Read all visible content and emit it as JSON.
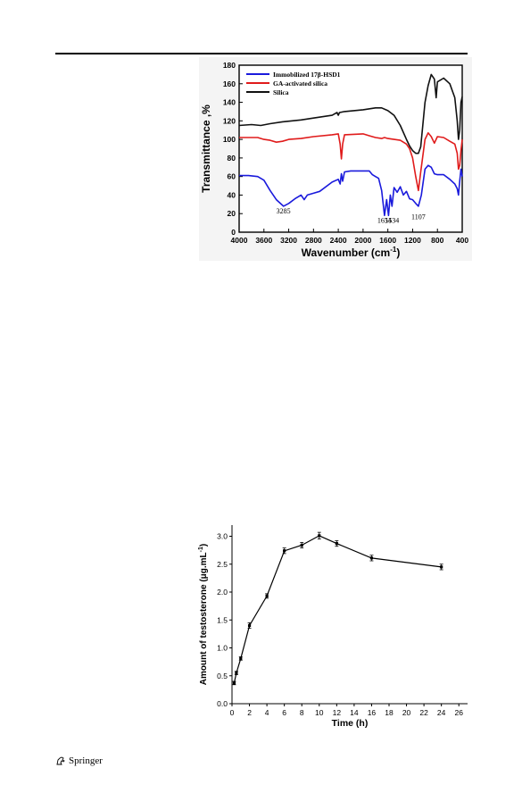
{
  "chart_data": [
    {
      "type": "line",
      "ylabel": "Transmittance ,%",
      "xlabel_main": "Wavenumber (cm",
      "xlabel_sup": "-1",
      "xlabel_close": ")",
      "xlim": [
        4000,
        400
      ],
      "ylim": [
        0,
        180
      ],
      "x_ticks": [
        4000,
        3600,
        3200,
        2800,
        2400,
        2000,
        1600,
        1200,
        800,
        400
      ],
      "y_ticks": [
        0,
        20,
        40,
        60,
        80,
        100,
        120,
        140,
        160,
        180
      ],
      "legend_position": "top-left",
      "series": [
        {
          "name": "Immobilized 17β-HSD1",
          "color": "#1a1adc",
          "x": [
            4000,
            3850,
            3700,
            3600,
            3500,
            3400,
            3285,
            3200,
            3100,
            3000,
            2950,
            2900,
            2800,
            2700,
            2500,
            2400,
            2370,
            2350,
            2330,
            2300,
            2200,
            2000,
            1900,
            1850,
            1800,
            1750,
            1700,
            1654,
            1620,
            1590,
            1560,
            1534,
            1500,
            1450,
            1400,
            1350,
            1300,
            1250,
            1200,
            1150,
            1107,
            1060,
            1000,
            950,
            900,
            850,
            800,
            700,
            600,
            520,
            480,
            460,
            440,
            420,
            400
          ],
          "y": [
            61,
            61,
            60,
            56,
            45,
            35,
            28,
            31,
            36,
            40,
            35,
            40,
            42,
            44,
            54,
            57,
            52,
            63,
            55,
            65,
            66,
            66,
            66,
            62,
            60,
            58,
            45,
            18,
            35,
            18,
            40,
            28,
            48,
            43,
            49,
            40,
            44,
            36,
            35,
            31,
            28,
            40,
            68,
            72,
            70,
            63,
            62,
            62,
            57,
            52,
            47,
            40,
            55,
            68,
            60
          ]
        },
        {
          "name": "GA-activated silica",
          "color": "#e01b1b",
          "x": [
            4000,
            3700,
            3600,
            3500,
            3400,
            3300,
            3200,
            3000,
            2800,
            2500,
            2400,
            2370,
            2350,
            2330,
            2300,
            2000,
            1900,
            1800,
            1700,
            1654,
            1600,
            1500,
            1400,
            1300,
            1250,
            1200,
            1150,
            1107,
            1070,
            1000,
            950,
            900,
            850,
            800,
            700,
            600,
            520,
            480,
            460,
            440,
            420,
            400
          ],
          "y": [
            102,
            102,
            100,
            99,
            97,
            98,
            100,
            101,
            103,
            105,
            106,
            95,
            79,
            95,
            105,
            106,
            104,
            102,
            101,
            102,
            101,
            100,
            99,
            95,
            90,
            80,
            60,
            45,
            65,
            100,
            107,
            103,
            96,
            103,
            102,
            98,
            95,
            85,
            68,
            72,
            88,
            100
          ]
        },
        {
          "name": "Silica",
          "color": "#111111",
          "x": [
            4000,
            3800,
            3650,
            3500,
            3300,
            3000,
            2800,
            2500,
            2420,
            2400,
            2380,
            2300,
            2000,
            1800,
            1700,
            1600,
            1500,
            1400,
            1300,
            1250,
            1200,
            1150,
            1107,
            1070,
            1000,
            950,
            900,
            850,
            820,
            800,
            700,
            600,
            520,
            480,
            460,
            440,
            420,
            400
          ],
          "y": [
            115,
            116,
            115,
            117,
            119,
            121,
            123,
            126,
            129,
            126,
            129,
            130,
            132,
            134,
            134,
            131,
            126,
            115,
            100,
            93,
            88,
            85,
            85,
            92,
            140,
            158,
            170,
            165,
            145,
            162,
            166,
            160,
            145,
            120,
            100,
            110,
            140,
            146
          ]
        }
      ],
      "annotations": [
        {
          "text": "3285",
          "x": 3285,
          "y": 20
        },
        {
          "text": "1654",
          "x": 1654,
          "y": 10
        },
        {
          "text": "1534",
          "x": 1534,
          "y": 10
        },
        {
          "text": "1107",
          "x": 1107,
          "y": 14
        }
      ]
    },
    {
      "type": "line",
      "ylabel_main": "Amount of testosterone (μg.mL",
      "ylabel_sup": "-1",
      "ylabel_close": ")",
      "xlabel": "Time (h)",
      "xlim": [
        0,
        27
      ],
      "ylim": [
        0,
        3.2
      ],
      "x_ticks": [
        0,
        2,
        4,
        6,
        8,
        10,
        12,
        14,
        16,
        18,
        20,
        22,
        24,
        26
      ],
      "y_ticks": [
        0.0,
        0.5,
        1.0,
        1.5,
        2.0,
        2.5,
        3.0
      ],
      "y_tick_labels": [
        "0.0",
        "0.5",
        "1.0",
        "1.5",
        "2.0",
        "2.5",
        "3.0"
      ],
      "series": [
        {
          "color": "#000000",
          "x": [
            0.25,
            0.5,
            1,
            2,
            4,
            6,
            8,
            10,
            12,
            16,
            24
          ],
          "values": [
            0.37,
            0.55,
            0.81,
            1.4,
            1.93,
            2.74,
            2.84,
            3.01,
            2.87,
            2.61,
            2.45
          ],
          "errors": [
            0.03,
            0.03,
            0.03,
            0.05,
            0.04,
            0.05,
            0.05,
            0.06,
            0.05,
            0.05,
            0.05
          ]
        }
      ]
    }
  ],
  "footer": {
    "publisher": "Springer"
  }
}
